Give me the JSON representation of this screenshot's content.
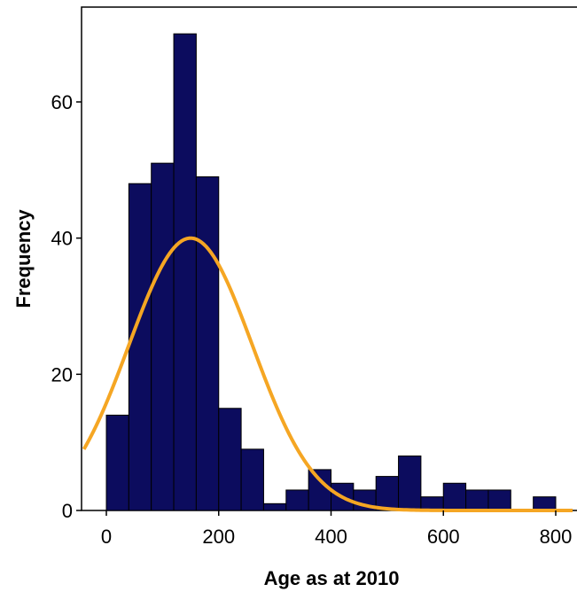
{
  "chart_data": {
    "type": "bar",
    "subtype": "histogram",
    "title": "",
    "xlabel": "Age as at 2010",
    "ylabel": "Frequency",
    "xlim": [
      -40,
      830
    ],
    "ylim": [
      0,
      74
    ],
    "x_ticks": [
      0,
      200,
      400,
      600,
      800
    ],
    "y_ticks": [
      0,
      20,
      40,
      60
    ],
    "grid": false,
    "legend": "none",
    "bin_width": 40,
    "bins": [
      {
        "start": 0,
        "end": 40,
        "value": 14
      },
      {
        "start": 40,
        "end": 80,
        "value": 48
      },
      {
        "start": 80,
        "end": 120,
        "value": 51
      },
      {
        "start": 120,
        "end": 160,
        "value": 70
      },
      {
        "start": 160,
        "end": 200,
        "value": 49
      },
      {
        "start": 200,
        "end": 240,
        "value": 15
      },
      {
        "start": 240,
        "end": 280,
        "value": 9
      },
      {
        "start": 280,
        "end": 320,
        "value": 1
      },
      {
        "start": 320,
        "end": 360,
        "value": 3
      },
      {
        "start": 360,
        "end": 400,
        "value": 6
      },
      {
        "start": 400,
        "end": 440,
        "value": 4
      },
      {
        "start": 440,
        "end": 480,
        "value": 3
      },
      {
        "start": 480,
        "end": 520,
        "value": 5
      },
      {
        "start": 520,
        "end": 560,
        "value": 8
      },
      {
        "start": 560,
        "end": 600,
        "value": 2
      },
      {
        "start": 600,
        "end": 640,
        "value": 4
      },
      {
        "start": 640,
        "end": 680,
        "value": 3
      },
      {
        "start": 680,
        "end": 720,
        "value": 3
      },
      {
        "start": 720,
        "end": 760,
        "value": 0
      },
      {
        "start": 760,
        "end": 800,
        "value": 2
      }
    ],
    "normal_curve": {
      "mean": 150,
      "std_dev": 110,
      "peak": 40
    },
    "colors": {
      "bar_fill": "#0c0c5e",
      "bar_edge": "#000000",
      "curve": "#f5a623",
      "axis": "#000000"
    }
  }
}
